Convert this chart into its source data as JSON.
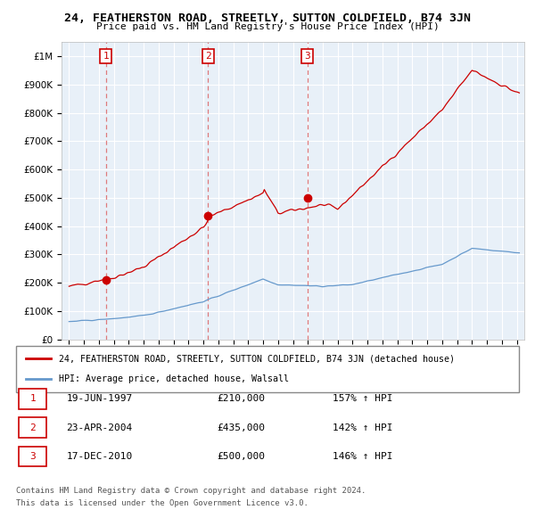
{
  "title": "24, FEATHERSTON ROAD, STREETLY, SUTTON COLDFIELD, B74 3JN",
  "subtitle": "Price paid vs. HM Land Registry's House Price Index (HPI)",
  "sale_dates": [
    "19-JUN-1997",
    "23-APR-2004",
    "17-DEC-2010"
  ],
  "sale_prices": [
    210000,
    435000,
    500000
  ],
  "sale_hpi_pct": [
    "157% ↑ HPI",
    "142% ↑ HPI",
    "146% ↑ HPI"
  ],
  "sale_years": [
    1997.47,
    2004.31,
    2010.96
  ],
  "legend_property": "24, FEATHERSTON ROAD, STREETLY, SUTTON COLDFIELD, B74 3JN (detached house)",
  "legend_hpi": "HPI: Average price, detached house, Walsall",
  "footer1": "Contains HM Land Registry data © Crown copyright and database right 2024.",
  "footer2": "This data is licensed under the Open Government Licence v3.0.",
  "red_color": "#cc0000",
  "blue_color": "#6699cc",
  "dashed_color": "#dd6666",
  "bg_color": "#e8f0f8",
  "ylim": [
    0,
    1050000
  ],
  "xlim": [
    1994.5,
    2025.5
  ]
}
